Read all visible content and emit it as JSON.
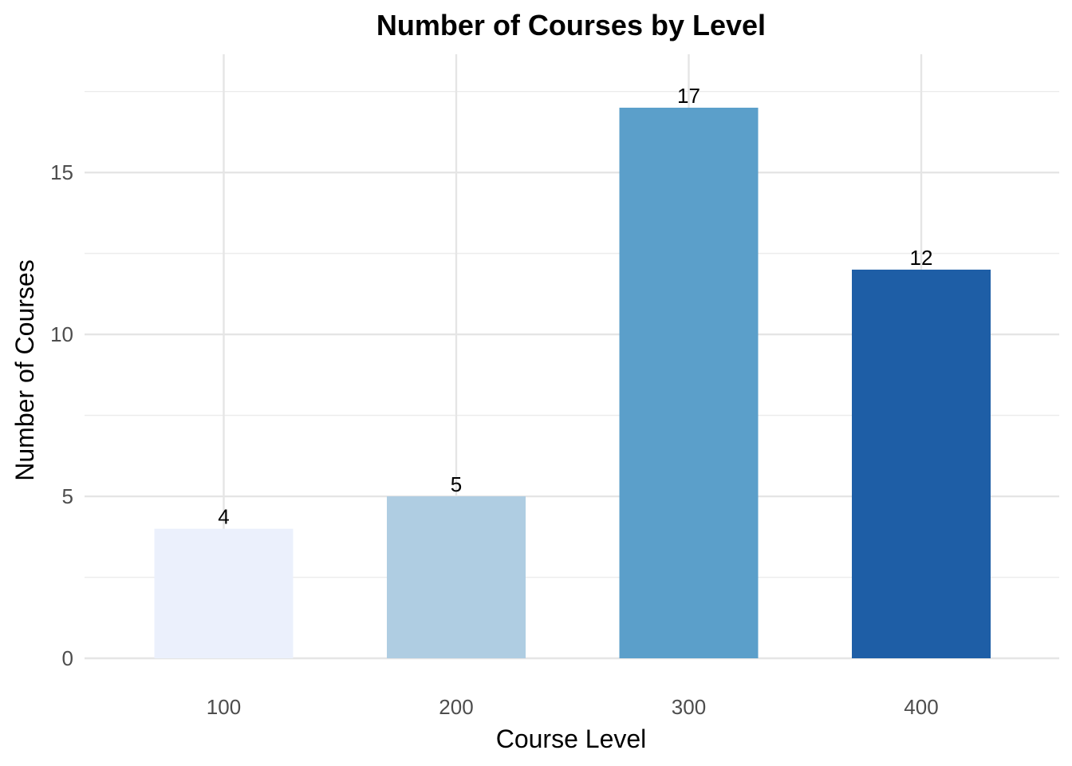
{
  "chart_data": {
    "type": "bar",
    "title": "Number of Courses by Level",
    "xlabel": "Course Level",
    "ylabel": "Number of Courses",
    "categories": [
      "100",
      "200",
      "300",
      "400"
    ],
    "values": [
      4,
      5,
      17,
      12
    ],
    "data_labels": [
      "4",
      "5",
      "17",
      "12"
    ],
    "colors": [
      "#ebf0fc",
      "#afcde2",
      "#5b9fca",
      "#1e5ea6"
    ],
    "ylim": [
      0,
      18.65
    ],
    "yticks": [
      0,
      5,
      10,
      15
    ],
    "ytick_labels": [
      "0",
      "5",
      "10",
      "15"
    ],
    "grid": true,
    "legend": "none"
  }
}
